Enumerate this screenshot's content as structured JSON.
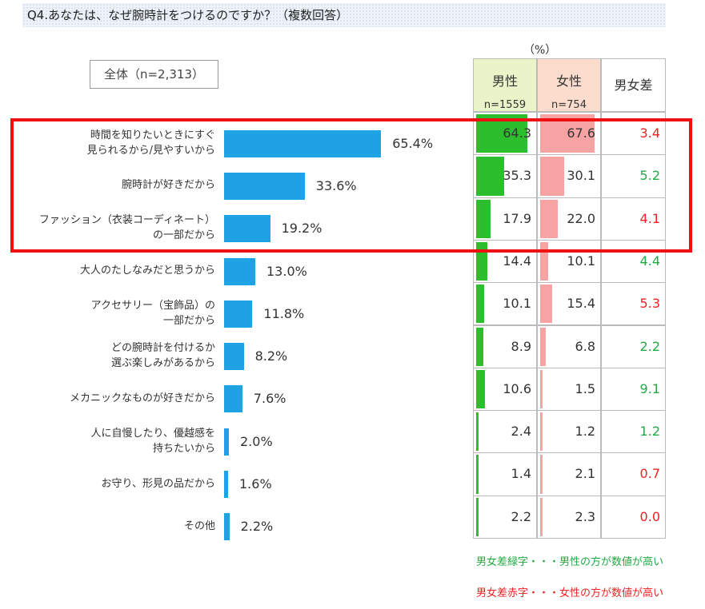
{
  "question": "Q4.あなたは、なぜ腕時計をつけるのですか？（複数回答）",
  "total_label": "全体（n=2,313）",
  "unit_label": "（%）",
  "header": {
    "male": "男性",
    "male_n": "n=1559",
    "female": "女性",
    "female_n": "n=754",
    "diff": "男女差"
  },
  "colors": {
    "total_bar": "#1fa2e4",
    "male_bar": "#2dbe2d",
    "female_bar": "#f7a3a3",
    "male_higher_text": "#22aa44",
    "female_higher_text": "#ee2222",
    "highlight": "#ee1111"
  },
  "chart_data": {
    "type": "bar",
    "categories": [
      [
        "時間を知りたいときにすぐ",
        "見られるから/見やすいから"
      ],
      [
        "腕時計が好きだから"
      ],
      [
        "ファッション（衣装コーディネート）",
        "の一部だから"
      ],
      [
        "大人のたしなみだと思うから"
      ],
      [
        "アクセサリー（宝飾品）の",
        "一部だから"
      ],
      [
        "どの腕時計を付けるか",
        "選ぶ楽しみがあるから"
      ],
      [
        "メカニックなものが好きだから"
      ],
      [
        "人に自慢したり、優越感を",
        "持ちたいから"
      ],
      [
        "お守り、形見の品だから"
      ],
      [
        "その他"
      ]
    ],
    "total_values": [
      65.4,
      33.6,
      19.2,
      13.0,
      11.8,
      8.2,
      7.6,
      2.0,
      1.6,
      2.2
    ],
    "total_labels": [
      "65.4%",
      "33.6%",
      "19.2%",
      "13.0%",
      "11.8%",
      "8.2%",
      "7.6%",
      "2.0%",
      "1.6%",
      "2.2%"
    ],
    "male": [
      "64.3",
      "35.3",
      "17.9",
      "14.4",
      "10.1",
      "8.9",
      "10.6",
      "2.4",
      "1.4",
      "2.2"
    ],
    "female": [
      "67.6",
      "30.1",
      "22.0",
      "10.1",
      "15.4",
      "6.8",
      "1.5",
      "1.2",
      "2.1",
      "2.3"
    ],
    "diff": [
      "3.4",
      "5.2",
      "4.1",
      "4.4",
      "5.3",
      "2.2",
      "9.1",
      "1.2",
      "0.7",
      "0.0"
    ],
    "diff_higher": [
      "female",
      "male",
      "female",
      "male",
      "female",
      "male",
      "male",
      "male",
      "female",
      "female"
    ],
    "highlighted_rows": 3
  },
  "notes": {
    "green": "男女差緑字・・・男性の方が数値が高い",
    "red": "男女差赤字・・・女性の方が数値が高い"
  }
}
